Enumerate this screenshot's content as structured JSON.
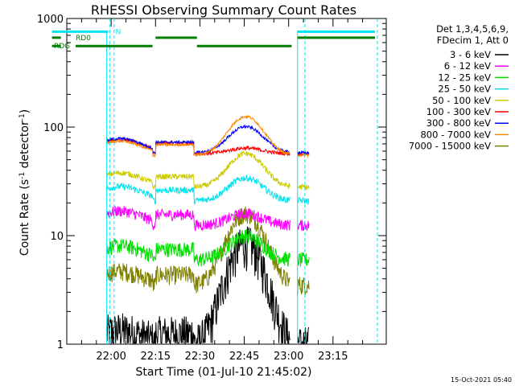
{
  "chart_data": {
    "type": "line",
    "title": "RHESSI Observing Summary Count Rates",
    "xlabel": "Start Time (01-Jul-10 21:45:02)",
    "ylabel_parts": [
      "Count Rate (s",
      "-1",
      " detector",
      "-1",
      ")"
    ],
    "yscale": "log",
    "ylim": [
      1,
      1000
    ],
    "yticks": [
      {
        "value": 1,
        "label": "1"
      },
      {
        "value": 10,
        "label": "10"
      },
      {
        "value": 100,
        "label": "100"
      },
      {
        "value": 1000,
        "label": "1000"
      }
    ],
    "x_unit": "minutes after 21:45:02",
    "xlim": [
      0,
      108
    ],
    "xticks": [
      {
        "value": 15,
        "label": "22:00"
      },
      {
        "value": 30,
        "label": "22:15"
      },
      {
        "value": 45,
        "label": "22:30"
      },
      {
        "value": 60,
        "label": "22:45"
      },
      {
        "value": 75,
        "label": "23:00"
      },
      {
        "value": 90,
        "label": "23:15"
      }
    ],
    "legend_placement": "right",
    "legend_header": [
      "Det 1,3,4,5,6,9,",
      "FDecim 1, Att 0"
    ],
    "series": [
      {
        "name": "3 - 6 keV",
        "color": "#000000",
        "base": 1.0,
        "noise": 0.45,
        "peak": 8.5
      },
      {
        "name": "6 - 12 keV",
        "color": "#ff00ff",
        "base": 12.5,
        "noise": 0.12,
        "peak": 16
      },
      {
        "name": "12 - 25 keV",
        "color": "#00dd00",
        "base": 6.0,
        "noise": 0.16,
        "peak": 10
      },
      {
        "name": "25 - 50 keV",
        "color": "#00e5ee",
        "base": 21,
        "noise": 0.07,
        "peak": 34
      },
      {
        "name": "50 - 100 keV",
        "color": "#cccc00",
        "base": 28,
        "noise": 0.06,
        "peak": 57
      },
      {
        "name": "100 - 300 keV",
        "color": "#ff0000",
        "base": 57,
        "noise": 0.04,
        "peak": 64
      },
      {
        "name": "300 - 800 keV",
        "color": "#0000ff",
        "base": 58,
        "noise": 0.03,
        "peak": 101
      },
      {
        "name": "800 - 7000 keV",
        "color": "#ff8800",
        "base": 55,
        "noise": 0.03,
        "peak": 125
      },
      {
        "name": "7000 - 15000 keV",
        "color": "#808000",
        "base": 3.5,
        "noise": 0.2,
        "peak": 16
      }
    ],
    "flag_lines": [
      {
        "label": "N",
        "color": "#00e5ee",
        "y": 756,
        "segments": [
          [
            -5,
            14
          ],
          [
            78,
            108
          ]
        ]
      },
      {
        "label": "RD0",
        "color": "#008000",
        "y": 666,
        "segments": [
          [
            -5,
            -2
          ],
          [
            30,
            44
          ],
          [
            78,
            108
          ]
        ]
      },
      {
        "label": "RDG",
        "color": "#008000",
        "y": 558,
        "segments": [
          [
            -5,
            -2
          ],
          [
            3,
            29
          ],
          [
            44,
            76
          ]
        ]
      }
    ],
    "data_gaps": [
      [
        -5,
        13.5
      ],
      [
        75.5,
        78
      ],
      [
        82,
        108
      ]
    ],
    "saa_markers_cyan": [
      [
        14.5,
        16
      ],
      [
        80.5,
        105
      ]
    ],
    "stamp": "15-Oct-2021 05:40"
  }
}
